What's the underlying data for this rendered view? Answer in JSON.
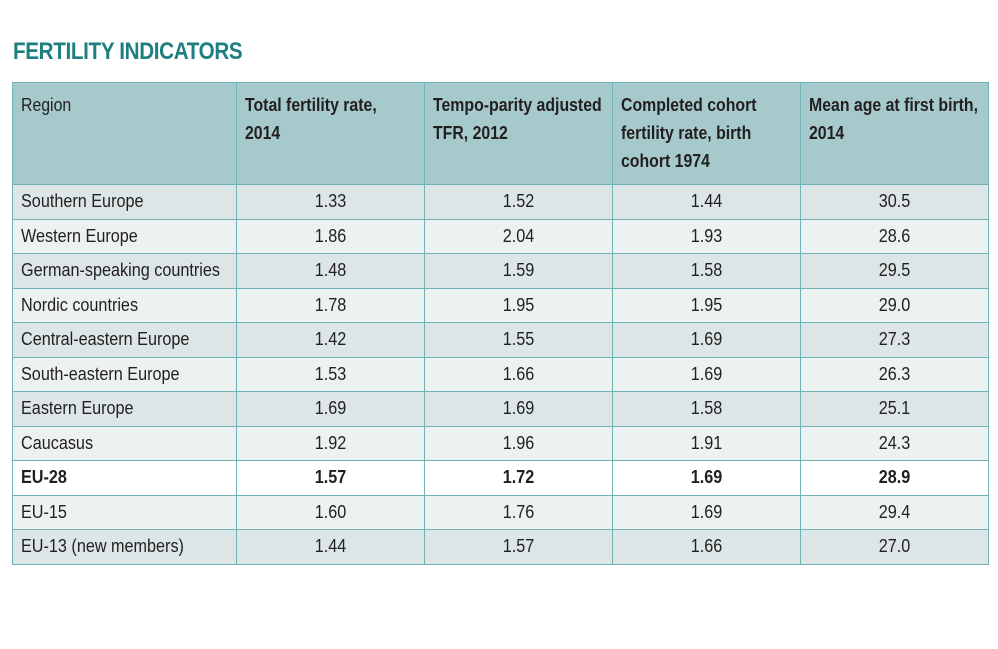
{
  "title": "FERTILITY INDICATORS",
  "colors": {
    "title": "#1d7f80",
    "header_bg": "#a6c9cc",
    "row_odd": "#dce6e6",
    "row_even": "#ecf1f1",
    "border": "#6fb3b4",
    "highlight_bg": "#ffffff"
  },
  "table": {
    "headers": [
      [
        "Region"
      ],
      [
        "Total fertility rate,",
        "2014"
      ],
      [
        "Tempo-parity adjusted",
        "TFR, 2012"
      ],
      [
        "Completed cohort",
        "fertility rate, birth",
        "cohort 1974"
      ],
      [
        "Mean age at first birth,",
        "2014"
      ]
    ],
    "rows": [
      {
        "region": "Southern Europe",
        "tfr": "1.33",
        "adj": "1.52",
        "cohort": "1.44",
        "age": "30.5"
      },
      {
        "region": "Western Europe",
        "tfr": "1.86",
        "adj": "2.04",
        "cohort": "1.93",
        "age": "28.6"
      },
      {
        "region": "German-speaking countries",
        "tfr": "1.48",
        "adj": "1.59",
        "cohort": "1.58",
        "age": "29.5"
      },
      {
        "region": "Nordic countries",
        "tfr": "1.78",
        "adj": "1.95",
        "cohort": "1.95",
        "age": "29.0"
      },
      {
        "region": "Central-eastern Europe",
        "tfr": "1.42",
        "adj": "1.55",
        "cohort": "1.69",
        "age": "27.3"
      },
      {
        "region": "South-eastern Europe",
        "tfr": "1.53",
        "adj": "1.66",
        "cohort": "1.69",
        "age": "26.3"
      },
      {
        "region": "Eastern Europe",
        "tfr": "1.69",
        "adj": "1.69",
        "cohort": "1.58",
        "age": "25.1"
      },
      {
        "region": "Caucasus",
        "tfr": "1.92",
        "adj": "1.96",
        "cohort": "1.91",
        "age": "24.3"
      },
      {
        "region": "EU-28",
        "tfr": "1.57",
        "adj": "1.72",
        "cohort": "1.69",
        "age": "28.9"
      },
      {
        "region": "EU-15",
        "tfr": "1.60",
        "adj": "1.76",
        "cohort": "1.69",
        "age": "29.4"
      },
      {
        "region": "EU-13 (new members)",
        "tfr": "1.44",
        "adj": "1.57",
        "cohort": "1.66",
        "age": "27.0"
      }
    ]
  }
}
